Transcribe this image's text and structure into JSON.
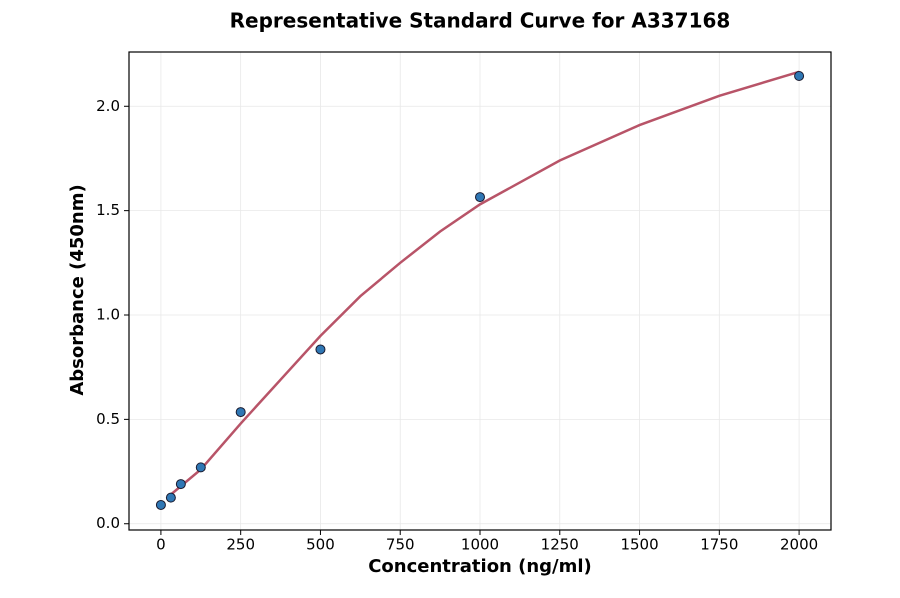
{
  "chart_data": {
    "type": "scatter",
    "title": "Representative Standard Curve for A337168",
    "xlabel": "Concentration (ng/ml)",
    "ylabel": "Absorbance (450nm)",
    "xlim": [
      -100,
      2100
    ],
    "ylim": [
      -0.03,
      2.26
    ],
    "xticks": [
      0,
      250,
      500,
      750,
      1000,
      1250,
      1500,
      1750,
      2000
    ],
    "yticks": [
      {
        "value": 0,
        "label": "0.0"
      },
      0.5,
      {
        "value": 1,
        "label": "1.0"
      },
      1.5,
      {
        "value": 2,
        "label": "2.0"
      }
    ],
    "grid": true,
    "series": [
      {
        "type": "scatter",
        "color": "#2f77b4",
        "x": [
          0,
          31.25,
          62.5,
          125,
          250,
          500,
          1000,
          2000
        ],
        "values": [
          0.09,
          0.125,
          0.19,
          0.27,
          0.535,
          0.835,
          1.565,
          2.145
        ]
      },
      {
        "type": "line",
        "color": "#b85468",
        "x": [
          31.25,
          125,
          250,
          375,
          500,
          625,
          750,
          875,
          1000,
          1250,
          1500,
          1750,
          2000
        ],
        "values": [
          0.14,
          0.26,
          0.48,
          0.69,
          0.9,
          1.09,
          1.25,
          1.4,
          1.53,
          1.74,
          1.91,
          2.05,
          2.165
        ]
      }
    ]
  }
}
